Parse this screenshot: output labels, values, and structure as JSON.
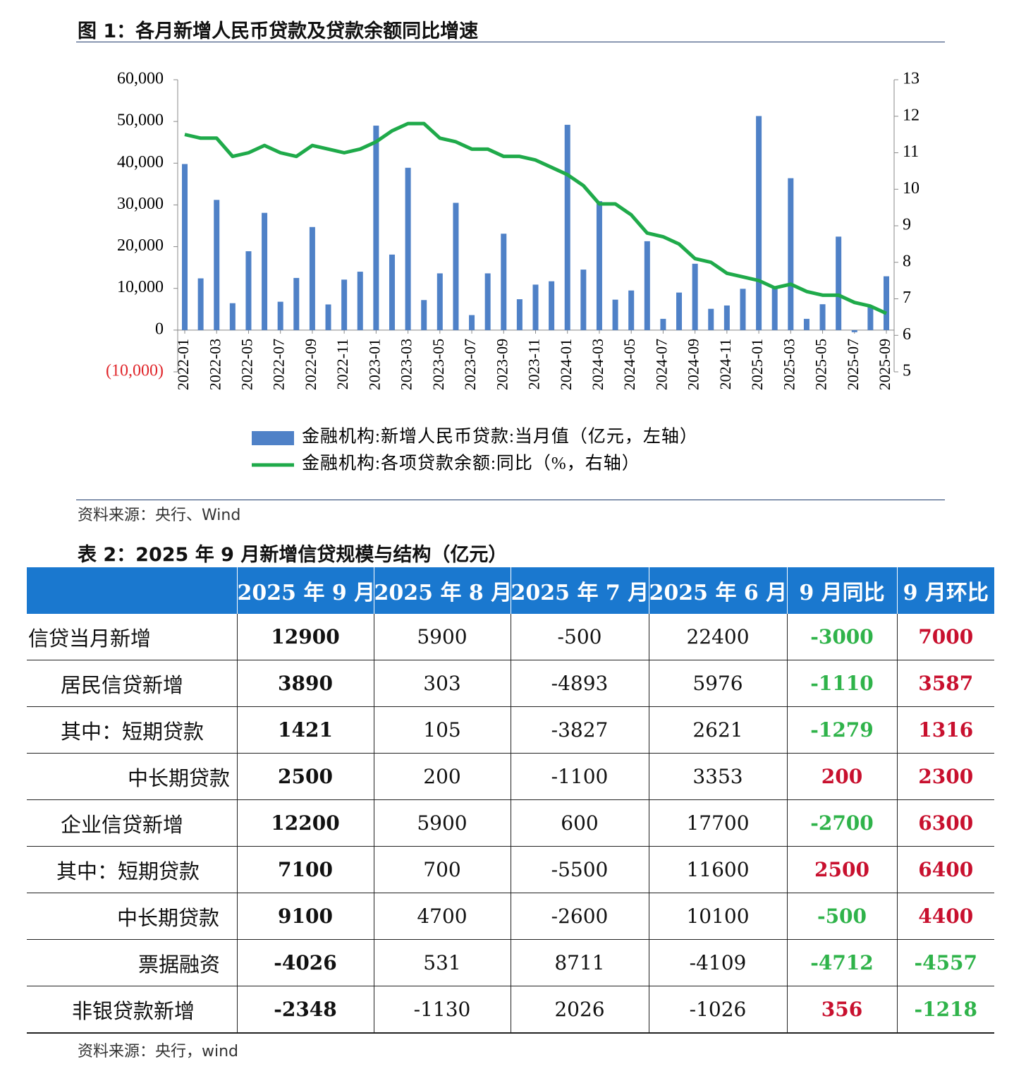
{
  "figure_title": "图 1：各月新增人民币贷款及贷款余额同比增速",
  "chart_data": {
    "type": "combo",
    "categories": [
      "2022-01",
      null,
      "2022-03",
      null,
      "2022-05",
      null,
      "2022-07",
      null,
      "2022-09",
      null,
      "2022-11",
      null,
      "2023-01",
      null,
      "2023-03",
      null,
      "2023-05",
      null,
      "2023-07",
      null,
      "2023-09",
      null,
      "2023-11",
      null,
      "2024-01",
      null,
      "2024-03",
      null,
      "2024-05",
      null,
      "2024-07",
      null,
      "2024-09",
      null,
      "2024-11",
      null,
      "2025-01",
      null,
      "2025-03",
      null,
      "2025-05",
      null,
      "2025-07",
      null,
      "2025-09"
    ],
    "series": [
      {
        "name": "金融机构:新增人民币贷款:当月值（亿元，左轴）",
        "type": "bar",
        "color": "#4f81c7",
        "values": [
          39800,
          12400,
          31200,
          6450,
          18900,
          28100,
          6800,
          12500,
          24700,
          6150,
          12100,
          14000,
          49000,
          18100,
          38900,
          7200,
          13600,
          30500,
          3600,
          13600,
          23100,
          7400,
          10900,
          11700,
          49200,
          14500,
          30900,
          7300,
          9500,
          21300,
          2700,
          9000,
          15900,
          5100,
          5900,
          9900,
          51300,
          10100,
          36400,
          2700,
          6200,
          22400,
          -500,
          5900,
          12900
        ]
      },
      {
        "name": "金融机构:各项贷款余额:同比（%，右轴）",
        "type": "line",
        "axis": "y2",
        "color": "#1faa4a",
        "values": [
          11.5,
          11.4,
          11.4,
          10.9,
          11.0,
          11.2,
          11.0,
          10.9,
          11.2,
          11.1,
          11.0,
          11.1,
          11.3,
          11.6,
          11.8,
          11.8,
          11.4,
          11.3,
          11.1,
          11.1,
          10.9,
          10.9,
          10.8,
          10.6,
          10.4,
          10.1,
          9.6,
          9.6,
          9.3,
          8.8,
          8.7,
          8.5,
          8.1,
          8.0,
          7.7,
          7.6,
          7.5,
          7.3,
          7.4,
          7.2,
          7.1,
          7.1,
          6.9,
          6.8,
          6.6
        ]
      }
    ],
    "ylim": [
      -10000,
      60000
    ],
    "yticks": [
      {
        "value": -10000,
        "label": "(10,000)"
      },
      0,
      {
        "value": 10000,
        "label": "10,000"
      },
      {
        "value": 20000,
        "label": "20,000"
      },
      {
        "value": 30000,
        "label": "30,000"
      },
      {
        "value": 40000,
        "label": "40,000"
      },
      {
        "value": 50000,
        "label": "50,000"
      },
      {
        "value": 60000,
        "label": "60,000"
      }
    ],
    "y2lim": [
      5,
      13
    ],
    "y2ticks": [
      5,
      6,
      7,
      8,
      9,
      10,
      11,
      12,
      13
    ],
    "negative_label_color": "#e0262b"
  },
  "figure_source": "资料来源：央行、Wind",
  "table_title": "表 2：2025 年 9 月新增信贷规模与结构（亿元）",
  "table": {
    "header": [
      "2025 年 9 月",
      "2025 年 8 月",
      "2025 年 7 月",
      "2025 年 6 月",
      "9 月同比",
      "9 月环比"
    ],
    "rows": [
      [
        "信贷当月新增",
        12900,
        5900,
        -500,
        22400,
        -3000,
        7000
      ],
      [
        "居民信贷新增",
        3890,
        303,
        -4893,
        5976,
        -1110,
        3587
      ],
      [
        "其中：短期贷款",
        1421,
        105,
        -3827,
        2621,
        -1279,
        1316
      ],
      [
        "中长期贷款",
        2500,
        200,
        -1100,
        3353,
        200,
        2300
      ],
      [
        "企业信贷新增",
        12200,
        5900,
        600,
        17700,
        -2700,
        6300
      ],
      [
        "其中：短期贷款",
        7100,
        700,
        -5500,
        11600,
        2500,
        6400
      ],
      [
        "中长期贷款",
        9100,
        4700,
        -2600,
        10100,
        -500,
        4400
      ],
      [
        "票据融资",
        -4026,
        531,
        8711,
        -4109,
        -4712,
        -4557
      ],
      [
        "非银贷款新增",
        -2348,
        -1130,
        2026,
        -1026,
        356,
        -1218
      ]
    ]
  },
  "table_source": "资料来源：央行，wind"
}
